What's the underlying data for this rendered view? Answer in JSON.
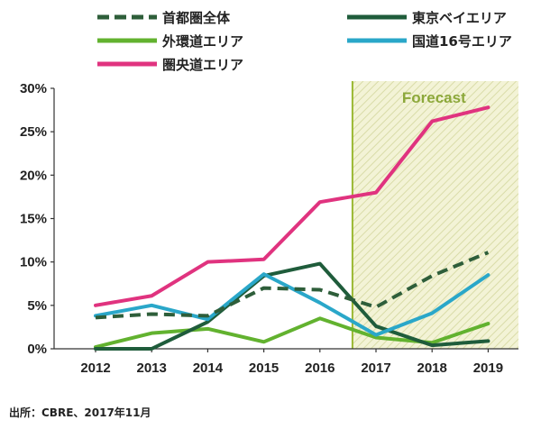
{
  "chart_data": {
    "type": "line",
    "categories": [
      "2012",
      "2013",
      "2014",
      "2015",
      "2016",
      "2017",
      "2018",
      "2019"
    ],
    "series": [
      {
        "name": "首都圏全体",
        "color": "#2e5e3a",
        "style": "dashed",
        "values": [
          3.6,
          4.0,
          3.8,
          7.0,
          6.8,
          4.8,
          8.4,
          11.1
        ]
      },
      {
        "name": "東京ベイエリア",
        "color": "#1f5c3b",
        "style": "solid",
        "values": [
          0.0,
          0.0,
          3.1,
          8.4,
          9.8,
          2.6,
          0.4,
          0.9
        ]
      },
      {
        "name": "外環道エリア",
        "color": "#62b22f",
        "style": "solid",
        "values": [
          0.2,
          1.8,
          2.3,
          0.8,
          3.5,
          1.3,
          0.7,
          2.9
        ]
      },
      {
        "name": "国道16号エリア",
        "color": "#2aa7c9",
        "style": "solid",
        "values": [
          3.8,
          5.0,
          3.4,
          8.6,
          5.3,
          1.6,
          4.1,
          8.5
        ]
      },
      {
        "name": "圏央道エリア",
        "color": "#e0337f",
        "style": "solid",
        "values": [
          5.0,
          6.1,
          10.0,
          10.3,
          16.9,
          18.0,
          26.2,
          27.8
        ]
      }
    ],
    "ylim": [
      0,
      30
    ],
    "yticks": [
      "0%",
      "5%",
      "10%",
      "15%",
      "20%",
      "25%",
      "30%"
    ],
    "forecast_label": "Forecast",
    "forecast_start": "2017",
    "legend_position": "top"
  },
  "source_note": "出所：CBRE、2017年11月"
}
